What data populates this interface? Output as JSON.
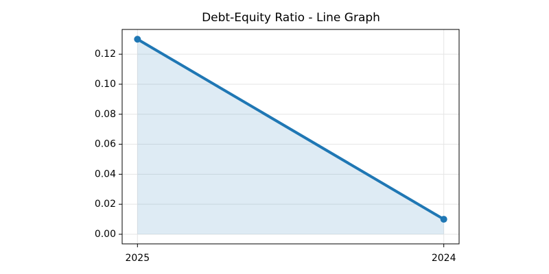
{
  "chart_data": {
    "type": "line",
    "title": "Debt-Equity Ratio - Line Graph",
    "categories": [
      "2025",
      "2024"
    ],
    "values": [
      0.13,
      0.01
    ],
    "color": "#1f77b4",
    "fill": true,
    "ylim": [
      -0.0064,
      0.1365
    ],
    "yticks": [
      {
        "value": 0,
        "label": "0.00"
      },
      {
        "value": 0.02,
        "label": "0.02"
      },
      {
        "value": 0.04,
        "label": "0.04"
      },
      {
        "value": 0.06,
        "label": "0.06"
      },
      {
        "value": 0.08,
        "label": "0.08"
      },
      {
        "value": 0.1,
        "label": "0.10"
      },
      {
        "value": 0.12,
        "label": "0.12"
      }
    ],
    "grid": true
  }
}
